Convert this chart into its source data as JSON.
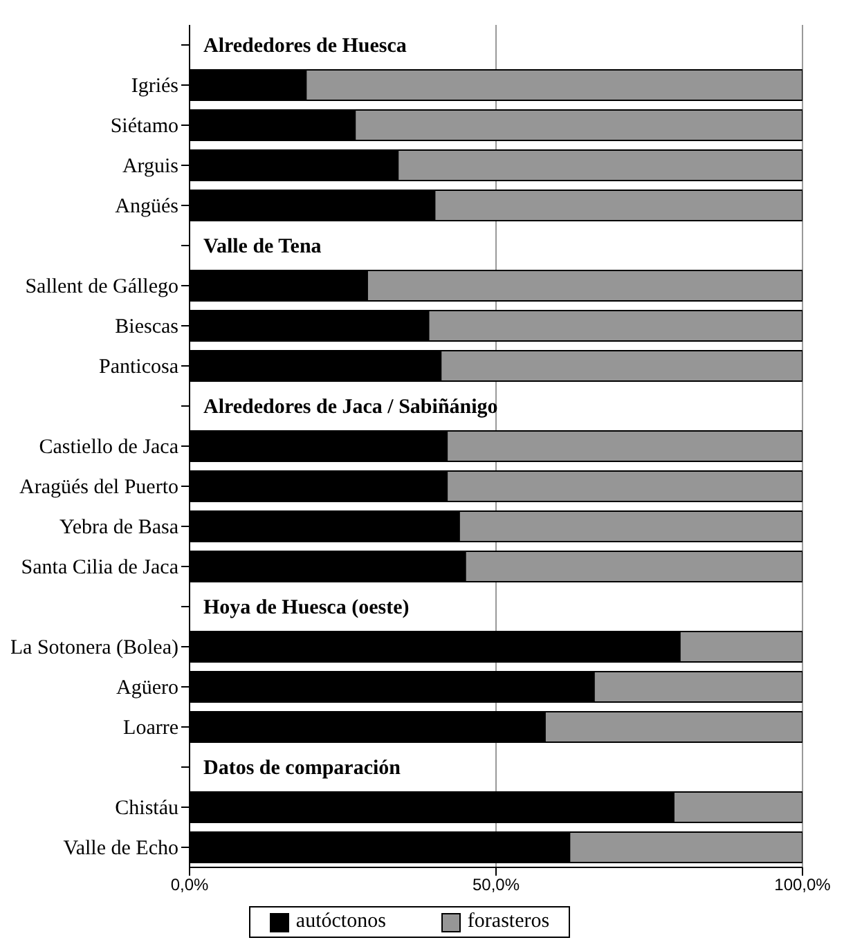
{
  "chart_data": {
    "type": "bar",
    "orientation": "horizontal",
    "stacked": true,
    "categories": [
      null,
      "Igriés",
      "Siétamo",
      "Arguis",
      "Angüés",
      null,
      "Sallent de Gállego",
      "Biescas",
      "Panticosa",
      null,
      "Castiello de Jaca",
      "Aragüés del Puerto",
      "Yebra de Basa",
      "Santa Cilia de Jaca",
      null,
      "La Sotonera (Bolea)",
      "Agüero",
      "Loarre",
      null,
      "Chistáu",
      "Valle de Echo"
    ],
    "series": [
      {
        "name": "autóctonos",
        "color": "#000000",
        "values": [
          null,
          19,
          27,
          34,
          40,
          null,
          29,
          39,
          41,
          null,
          42,
          42,
          44,
          45,
          null,
          80,
          66,
          58,
          null,
          79,
          62
        ]
      },
      {
        "name": "forasteros",
        "color": "#969696",
        "values": [
          null,
          81,
          73,
          66,
          60,
          null,
          71,
          61,
          59,
          null,
          58,
          58,
          56,
          55,
          null,
          20,
          34,
          42,
          null,
          21,
          38
        ]
      }
    ],
    "annotations": [
      "Alrededores de Huesca",
      "Valle de Tena",
      "Alrededores de Jaca / Sabiñánigo",
      "Hoya de Huesca (oeste)",
      "Datos de comparación"
    ],
    "xlim": [
      0,
      100
    ],
    "xticks": [
      {
        "value": 0,
        "label": "0,0%"
      },
      {
        "value": 50,
        "label": "50,0%"
      },
      {
        "value": 100,
        "label": "100,0%"
      }
    ],
    "grid": "x",
    "legend": "bottom"
  }
}
